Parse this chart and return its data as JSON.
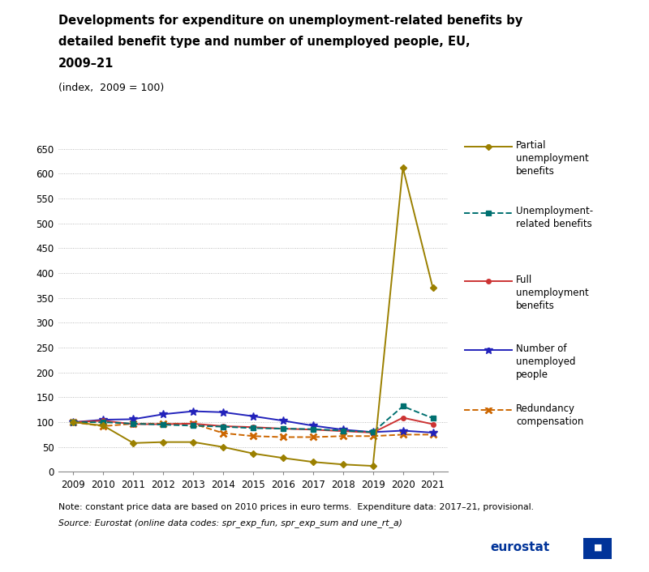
{
  "years": [
    2009,
    2010,
    2011,
    2012,
    2013,
    2014,
    2015,
    2016,
    2017,
    2018,
    2019,
    2020,
    2021
  ],
  "partial_unemployment": [
    100,
    93,
    58,
    60,
    60,
    50,
    37,
    28,
    20,
    15,
    12,
    612,
    370
  ],
  "unemployment_related": [
    100,
    100,
    97,
    95,
    93,
    91,
    88,
    87,
    86,
    83,
    80,
    132,
    108
  ],
  "full_unemployment": [
    100,
    103,
    96,
    96,
    97,
    92,
    90,
    87,
    85,
    82,
    79,
    109,
    96
  ],
  "number_unemployed": [
    100,
    105,
    106,
    116,
    122,
    120,
    112,
    103,
    93,
    85,
    80,
    83,
    79
  ],
  "redundancy_compensation": [
    100,
    92,
    97,
    97,
    97,
    78,
    72,
    70,
    70,
    72,
    72,
    75,
    75
  ],
  "color_partial": "#9B8000",
  "color_unemployment_related": "#007070",
  "color_full": "#CC3333",
  "color_number": "#2222BB",
  "color_redundancy": "#CC6600",
  "title_line1": "Developments for expenditure on unemployment-related benefits by",
  "title_line2": "detailed benefit type and number of unemployed people, EU,",
  "title_line3": "2009–21",
  "subtitle": "(index,  2009 = 100)",
  "ylim_min": 0,
  "ylim_max": 650,
  "yticks": [
    0,
    50,
    100,
    150,
    200,
    250,
    300,
    350,
    400,
    450,
    500,
    550,
    600,
    650
  ],
  "note": "Note: constant price data are based on 2010 prices in euro terms.  Expenditure data: 2017–21, provisional.",
  "source": "Source: Eurostat (online data codes: spr_exp_fun, spr_exp_sum and une_rt_a)"
}
